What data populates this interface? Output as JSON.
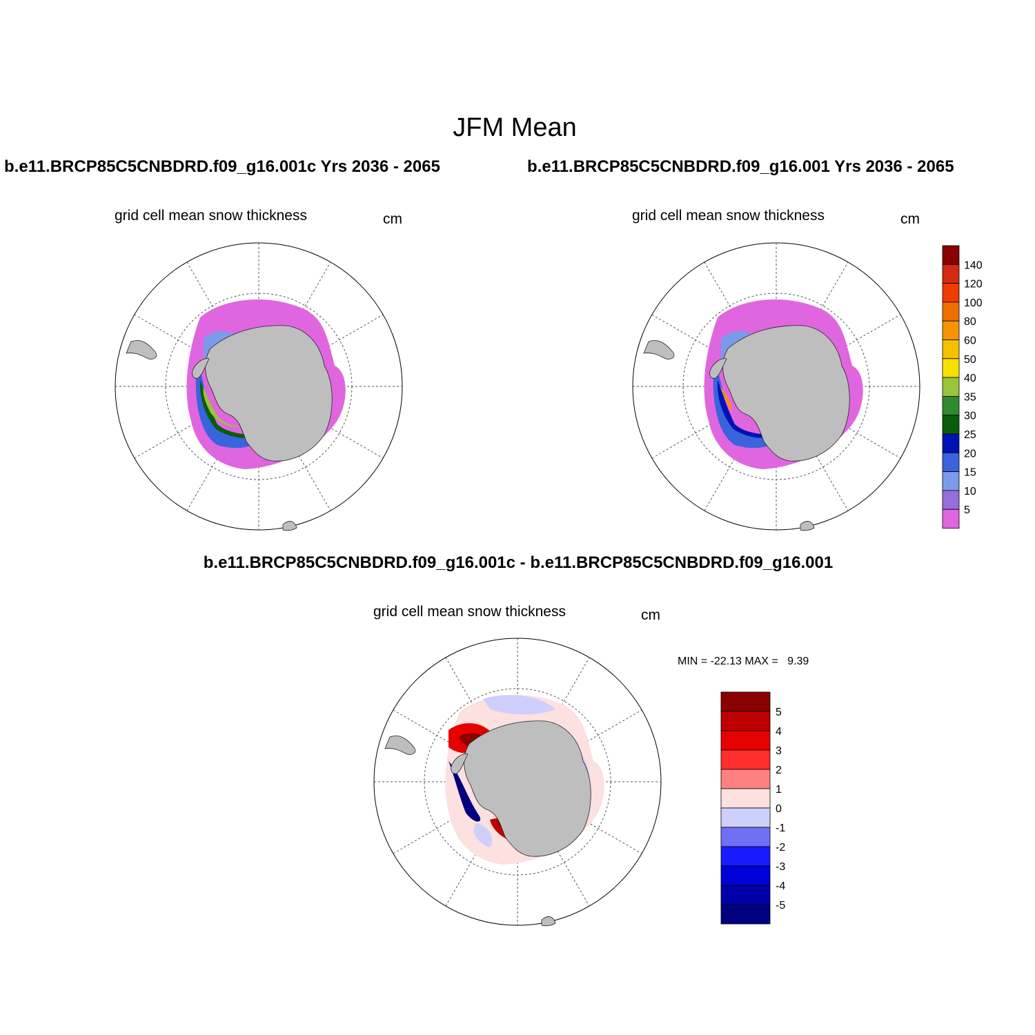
{
  "figure_title": "JFM Mean",
  "panels": {
    "left": {
      "title": "b.e11.BRCP85C5CNBDRD.f09_g16.001c  Yrs 2036 - 2065",
      "variable": "grid cell mean snow thickness",
      "units": "cm"
    },
    "right": {
      "title": "b.e11.BRCP85C5CNBDRD.f09_g16.001  Yrs 2036 - 2065",
      "variable": "grid cell mean snow thickness",
      "units": "cm"
    },
    "difference": {
      "title": "b.e11.BRCP85C5CNBDRD.f09_g16.001c - b.e11.BRCP85C5CNBDRD.f09_g16.001",
      "variable": "grid cell mean snow thickness",
      "units": "cm",
      "min_max": "MIN = -22.13 MAX =   9.39"
    }
  },
  "colorbar_main": {
    "labels": [
      "140",
      "120",
      "100",
      "80",
      "60",
      "50",
      "40",
      "35",
      "30",
      "25",
      "20",
      "15",
      "10",
      "5"
    ],
    "colors": [
      "#8b0000",
      "#d42a12",
      "#f03c00",
      "#f06e00",
      "#f59400",
      "#f5c000",
      "#f5e100",
      "#9ac43a",
      "#2e8b2e",
      "#0a5c0a",
      "#0012b4",
      "#3a63de",
      "#7b9bea",
      "#9370db",
      "#e066e0"
    ]
  },
  "colorbar_diff": {
    "labels": [
      "5",
      "4",
      "3",
      "2",
      "1",
      "0",
      "-1",
      "-2",
      "-3",
      "-4",
      "-5"
    ],
    "colors": [
      "#8b0000",
      "#bf0000",
      "#e60000",
      "#ff2e2e",
      "#ff8080",
      "#fde0e0",
      "#cfcffb",
      "#7070f5",
      "#1a1aff",
      "#0000d8",
      "#0000a8",
      "#000080"
    ]
  }
}
